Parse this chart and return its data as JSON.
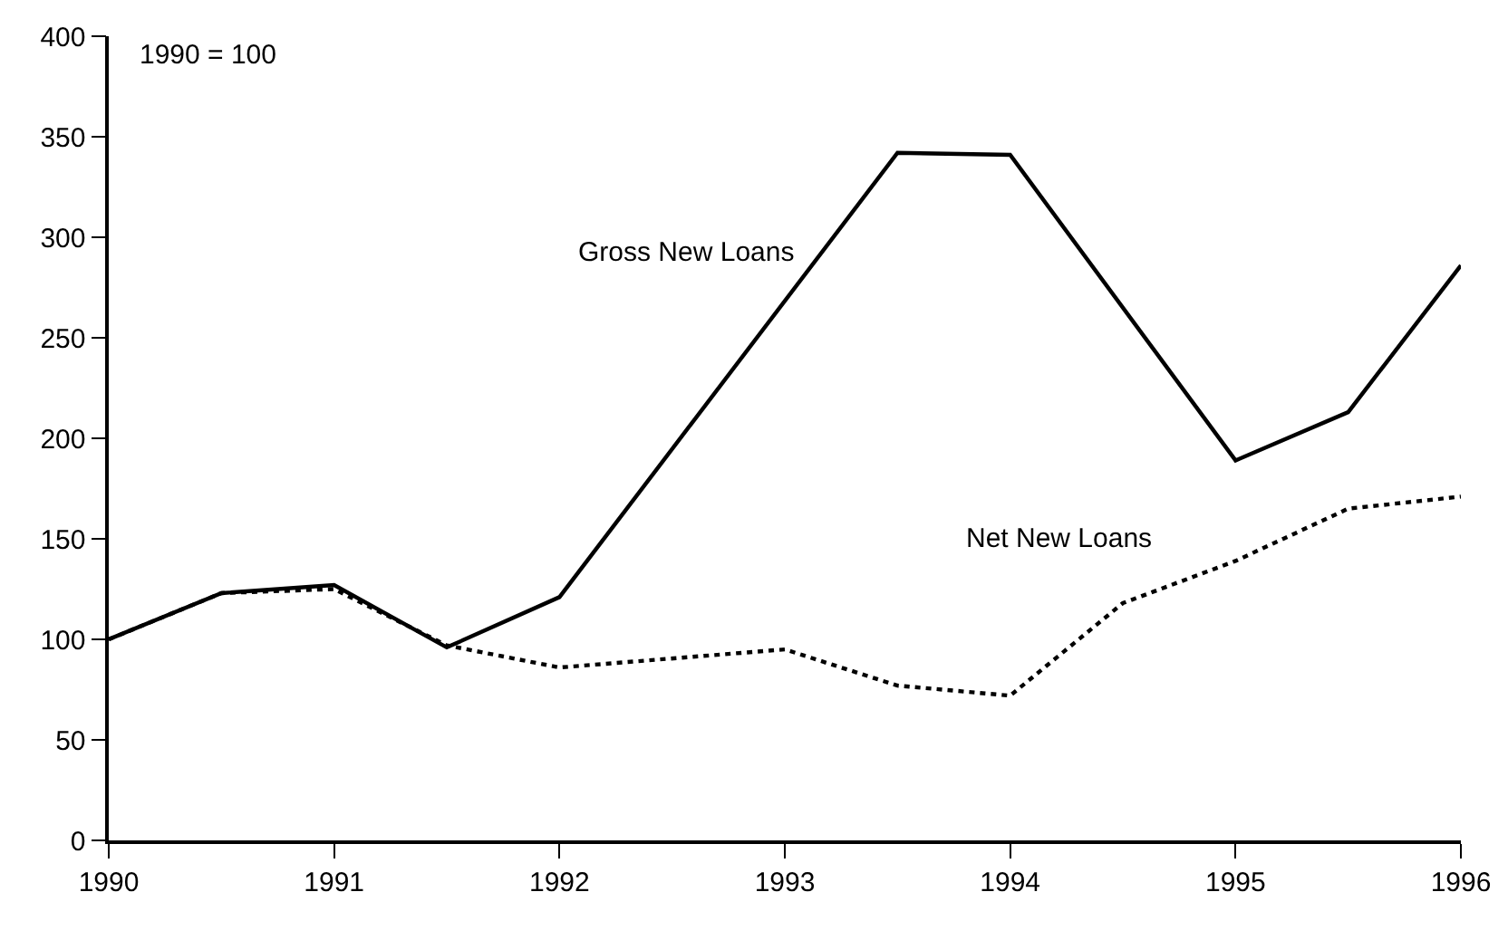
{
  "chart_data": {
    "type": "line",
    "x": [
      1990,
      1990.5,
      1991,
      1991.5,
      1992,
      1993,
      1993.5,
      1994,
      1994.5,
      1995,
      1995.5,
      1996
    ],
    "series": [
      {
        "name": "Gross New Loans",
        "color": "#000000",
        "line_style": "solid",
        "values": [
          100,
          123,
          127,
          96,
          121,
          null,
          342,
          341,
          null,
          189,
          213,
          286
        ]
      },
      {
        "name": "Net New Loans",
        "color": "#000000",
        "line_style": "dotted",
        "values": [
          100,
          123,
          125,
          97,
          86,
          95,
          77,
          72,
          118,
          139,
          165,
          171
        ]
      }
    ],
    "xlim": [
      1990,
      1996
    ],
    "xticks": [
      1990,
      1991,
      1992,
      1993,
      1994,
      1995,
      1996
    ],
    "ylim": [
      0,
      400
    ],
    "yticks": [
      0,
      50,
      100,
      150,
      200,
      250,
      300,
      350,
      400
    ],
    "annotations": [
      "1990 = 100"
    ],
    "grid": false,
    "legend": false,
    "marker": "none"
  }
}
